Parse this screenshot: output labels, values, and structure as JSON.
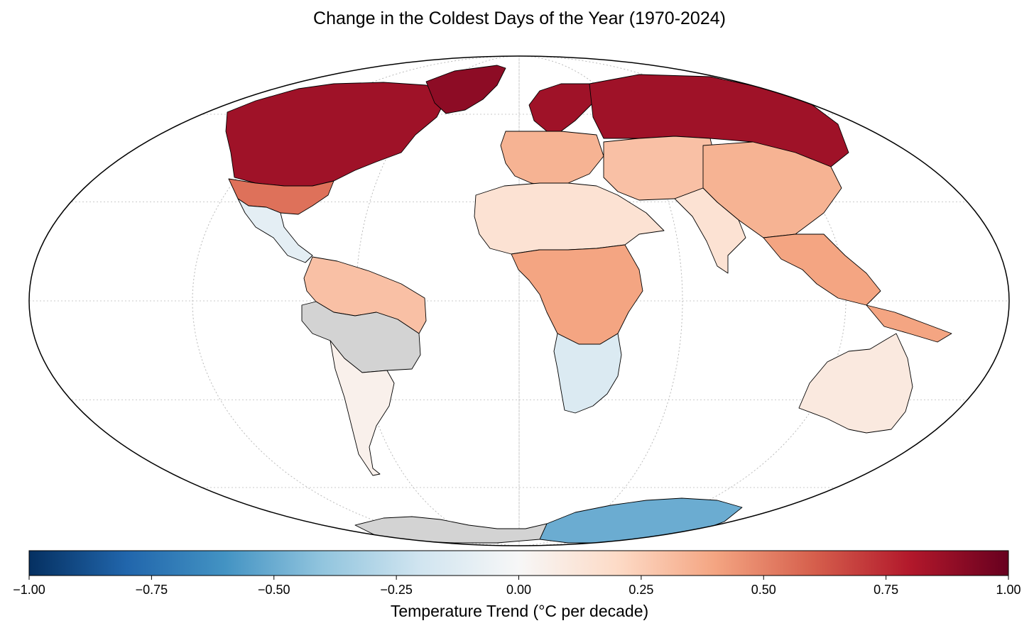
{
  "title": "Change in the Coldest Days of the Year (1970-2024)",
  "projection": "mollweide",
  "colorbar": {
    "label": "Temperature Trend (°C per decade)",
    "min": -1.0,
    "max": 1.0,
    "ticks": [
      "−1.00",
      "−0.75",
      "−0.50",
      "−0.25",
      "0.00",
      "0.25",
      "0.50",
      "0.75",
      "1.00"
    ],
    "colormap": "RdBu_r",
    "stops": [
      "#053061",
      "#2166ac",
      "#4393c3",
      "#92c5de",
      "#d1e5f0",
      "#f7f7f7",
      "#fddbc7",
      "#f4a582",
      "#d6604d",
      "#b2182b",
      "#67001f"
    ]
  },
  "colors": {
    "no_data": "#d3d3d3",
    "ocean": "#ffffff",
    "border": "#000000",
    "gridline": "#bbbbbb"
  },
  "regions": [
    {
      "name": "Canada / Arctic North America",
      "trend": 0.85
    },
    {
      "name": "Greenland",
      "trend": 0.9
    },
    {
      "name": "United States",
      "trend": 0.55
    },
    {
      "name": "Mexico",
      "trend": -0.1
    },
    {
      "name": "Northern South America",
      "trend": 0.3
    },
    {
      "name": "Amazon (no data)",
      "trend": null
    },
    {
      "name": "Southern South America",
      "trend": 0.05
    },
    {
      "name": "Scandinavia / Northern Europe",
      "trend": 0.85
    },
    {
      "name": "Europe",
      "trend": 0.35
    },
    {
      "name": "Russia / Siberia",
      "trend": 0.85
    },
    {
      "name": "Central Asia",
      "trend": 0.3
    },
    {
      "name": "China / East Asia",
      "trend": 0.35
    },
    {
      "name": "South Asia",
      "trend": 0.15
    },
    {
      "name": "Southeast Asia",
      "trend": 0.4
    },
    {
      "name": "Northern Africa",
      "trend": 0.15
    },
    {
      "name": "Central Africa",
      "trend": 0.4
    },
    {
      "name": "Southern Africa",
      "trend": -0.15
    },
    {
      "name": "Australia",
      "trend": 0.1
    },
    {
      "name": "East Antarctica",
      "trend": -0.5
    },
    {
      "name": "West Antarctica (no data)",
      "trend": null
    }
  ]
}
